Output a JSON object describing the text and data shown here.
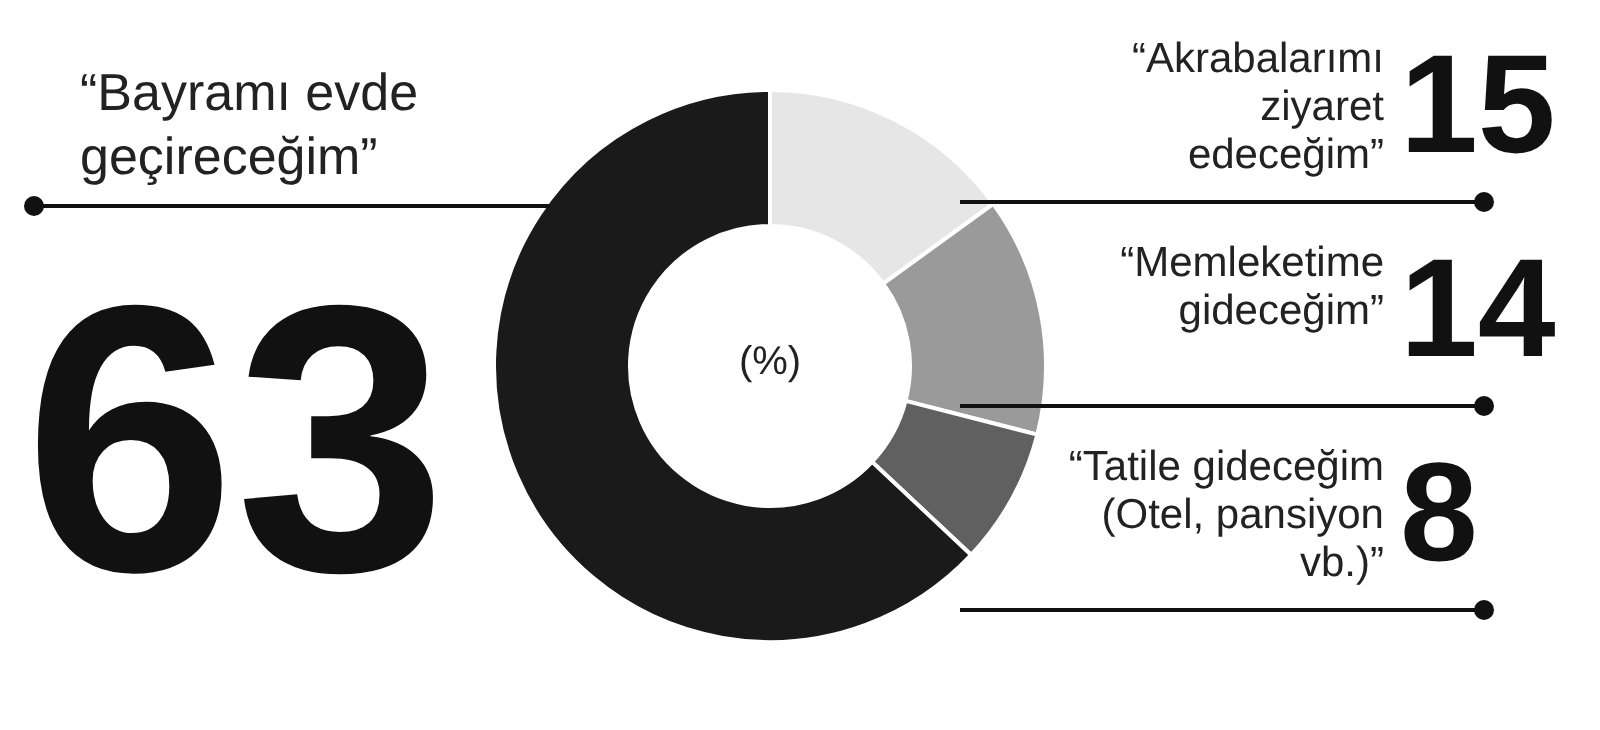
{
  "chart_data": {
    "type": "donut",
    "categories": [
      "“Akrabalarımı ziyaret edeceğim”",
      "“Memleketime gideceğim”",
      "“Tatile gideceğim (Otel, pansiyon vb.)”",
      "“Bayramı evde geçireceğim”"
    ],
    "values": [
      15,
      14,
      8,
      63
    ],
    "colors": [
      "#e6e6e6",
      "#9a9a9a",
      "#606060",
      "#1a1a1a"
    ],
    "data_labels": true,
    "annotations": [
      "(%)"
    ]
  }
}
